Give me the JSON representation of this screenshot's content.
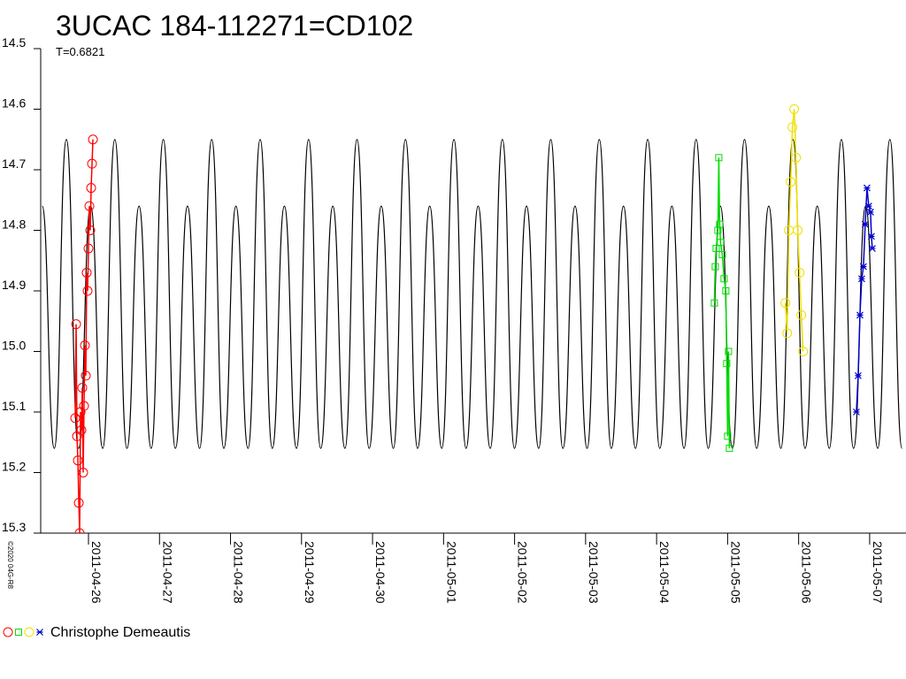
{
  "chart_data": {
    "type": "scatter",
    "title": "3UCAC 184-112271=CD102",
    "subtitle": "T=0.6821",
    "credit": "©2020 04G-R8",
    "legend_label": "Christophe Demeautis",
    "xlim": [
      "2011-04-25 07:51",
      "2011-05-07 12:17"
    ],
    "xticks": [
      "2011-04-26",
      "2011-04-27",
      "2011-04-28",
      "2011-04-29",
      "2011-04-30",
      "2011-05-01",
      "2011-05-02",
      "2011-05-03",
      "2011-05-04",
      "2011-05-05",
      "2011-05-06",
      "2011-05-07"
    ],
    "ylim": [
      15.3,
      14.5
    ],
    "yticks": [
      14.5,
      14.6,
      14.7,
      14.8,
      14.9,
      {
        "value": 15,
        "label": "15.0"
      },
      15.1,
      15.2,
      15.3
    ],
    "model": {
      "color": "#000000",
      "x": [
        "2011-04-25 08:21",
        "2011-04-25 12:27",
        "2011-04-25 16:32",
        "2011-04-25 20:38",
        "2011-04-26 00:43",
        "2011-04-26 04:49",
        "2011-04-26 08:54",
        "2011-04-26 13:00",
        "2011-04-26 17:05",
        "2011-04-26 21:11",
        "2011-04-27 01:17",
        "2011-04-27 05:22",
        "2011-04-27 09:28",
        "2011-04-27 13:33",
        "2011-04-27 17:39",
        "2011-04-27 21:44",
        "2011-04-28 01:50",
        "2011-04-28 05:55",
        "2011-04-28 10:01",
        "2011-04-28 14:07",
        "2011-04-28 18:12",
        "2011-04-28 22:18",
        "2011-04-29 02:23",
        "2011-04-29 06:29",
        "2011-04-29 10:34",
        "2011-04-29 14:40",
        "2011-04-29 18:45",
        "2011-04-29 22:51",
        "2011-04-30 02:57",
        "2011-04-30 07:02",
        "2011-04-30 11:08",
        "2011-04-30 15:13",
        "2011-04-30 19:19",
        "2011-04-30 23:24",
        "2011-05-01 03:30",
        "2011-05-01 07:36",
        "2011-05-01 11:41",
        "2011-05-01 15:47",
        "2011-05-01 19:52",
        "2011-05-01 23:58",
        "2011-05-02 04:03",
        "2011-05-02 08:09",
        "2011-05-02 12:14",
        "2011-05-02 16:20",
        "2011-05-02 20:26",
        "2011-05-03 00:31",
        "2011-05-03 04:37",
        "2011-05-03 08:42",
        "2011-05-03 12:48",
        "2011-05-03 16:53",
        "2011-05-03 20:59",
        "2011-05-04 01:04",
        "2011-05-04 05:10",
        "2011-05-04 09:16",
        "2011-05-04 13:21",
        "2011-05-04 17:27",
        "2011-05-04 21:32",
        "2011-05-05 01:38",
        "2011-05-05 05:43",
        "2011-05-05 09:49",
        "2011-05-05 13:54",
        "2011-05-05 18:00",
        "2011-05-05 22:06",
        "2011-05-06 02:11",
        "2011-05-06 06:17",
        "2011-05-06 10:22",
        "2011-05-06 14:28",
        "2011-05-06 18:33",
        "2011-05-06 22:39",
        "2011-05-07 02:44",
        "2011-05-07 06:50",
        "2011-05-07 10:56"
      ],
      "values": [
        14.76,
        15.16,
        14.65,
        15.16,
        14.76,
        15.16,
        14.65,
        15.16,
        14.76,
        15.16,
        14.65,
        15.16,
        14.76,
        15.16,
        14.65,
        15.16,
        14.76,
        15.16,
        14.65,
        15.16,
        14.76,
        15.16,
        14.65,
        15.16,
        14.76,
        15.16,
        14.65,
        15.16,
        14.76,
        15.16,
        14.65,
        15.16,
        14.76,
        15.16,
        14.65,
        15.16,
        14.76,
        15.16,
        14.65,
        15.16,
        14.76,
        15.16,
        14.65,
        15.16,
        14.76,
        15.16,
        14.65,
        15.16,
        14.76,
        15.16,
        14.65,
        15.16,
        14.76,
        15.16,
        14.65,
        15.16,
        14.76,
        15.16,
        14.65,
        15.16,
        14.76,
        15.16,
        14.65,
        15.16,
        14.76,
        15.16,
        14.65,
        15.16,
        14.76,
        15.16,
        14.65,
        15.16
      ]
    },
    "series": [
      {
        "color": "#ff0000",
        "marker": "circle",
        "x": [
          "2011-04-25 19:31",
          "2011-04-25 19:49",
          "2011-04-25 20:07",
          "2011-04-25 20:25",
          "2011-04-25 20:43",
          "2011-04-25 21:01",
          "2011-04-25 21:19",
          "2011-04-25 21:36",
          "2011-04-25 21:54",
          "2011-04-25 22:12",
          "2011-04-25 22:30",
          "2011-04-25 22:48",
          "2011-04-25 23:06",
          "2011-04-25 23:24",
          "2011-04-25 23:42",
          "2011-04-26 00:00",
          "2011-04-26 00:18",
          "2011-04-26 00:36",
          "2011-04-26 00:54",
          "2011-04-26 01:12",
          "2011-04-26 01:30"
        ],
        "values": [
          15.11,
          14.955,
          15.14,
          15.18,
          15.25,
          15.3,
          15.1,
          15.13,
          15.06,
          15.2,
          15.09,
          14.99,
          15.04,
          14.87,
          14.9,
          14.83,
          14.76,
          14.8,
          14.73,
          14.69,
          14.65
        ]
      },
      {
        "color": "#00dd00",
        "marker": "square",
        "x": [
          "2011-05-04 19:31",
          "2011-05-04 19:49",
          "2011-05-04 20:07",
          "2011-05-04 20:43",
          "2011-05-04 21:01",
          "2011-05-04 21:19",
          "2011-05-04 21:36",
          "2011-05-04 22:12",
          "2011-05-04 22:48",
          "2011-05-04 23:24",
          "2011-05-04 23:42",
          "2011-05-05 00:00",
          "2011-05-05 00:18",
          "2011-05-05 00:36"
        ],
        "values": [
          14.92,
          14.86,
          14.83,
          14.8,
          14.68,
          14.79,
          14.82,
          14.84,
          14.88,
          14.9,
          15.02,
          15.14,
          15.0,
          15.16
        ]
      },
      {
        "color": "#f0e000",
        "marker": "circle",
        "x": [
          "2011-05-05 19:31",
          "2011-05-05 20:07",
          "2011-05-05 20:43",
          "2011-05-05 21:19",
          "2011-05-05 21:54",
          "2011-05-05 22:30",
          "2011-05-05 23:06",
          "2011-05-05 23:42",
          "2011-05-06 00:18",
          "2011-05-06 00:54",
          "2011-05-06 01:30"
        ],
        "values": [
          14.92,
          14.97,
          14.8,
          14.72,
          14.63,
          14.6,
          14.68,
          14.8,
          14.87,
          14.94,
          15.0
        ]
      },
      {
        "color": "#0000cc",
        "marker": "star",
        "x": [
          "2011-05-06 19:31",
          "2011-05-06 20:07",
          "2011-05-06 20:43",
          "2011-05-06 21:19",
          "2011-05-06 21:54",
          "2011-05-06 22:30",
          "2011-05-06 23:06",
          "2011-05-06 23:42",
          "2011-05-07 00:18",
          "2011-05-07 00:36",
          "2011-05-07 00:54"
        ],
        "values": [
          15.1,
          15.04,
          14.94,
          14.88,
          14.86,
          14.79,
          14.73,
          14.76,
          14.77,
          14.81,
          14.83
        ]
      }
    ]
  }
}
